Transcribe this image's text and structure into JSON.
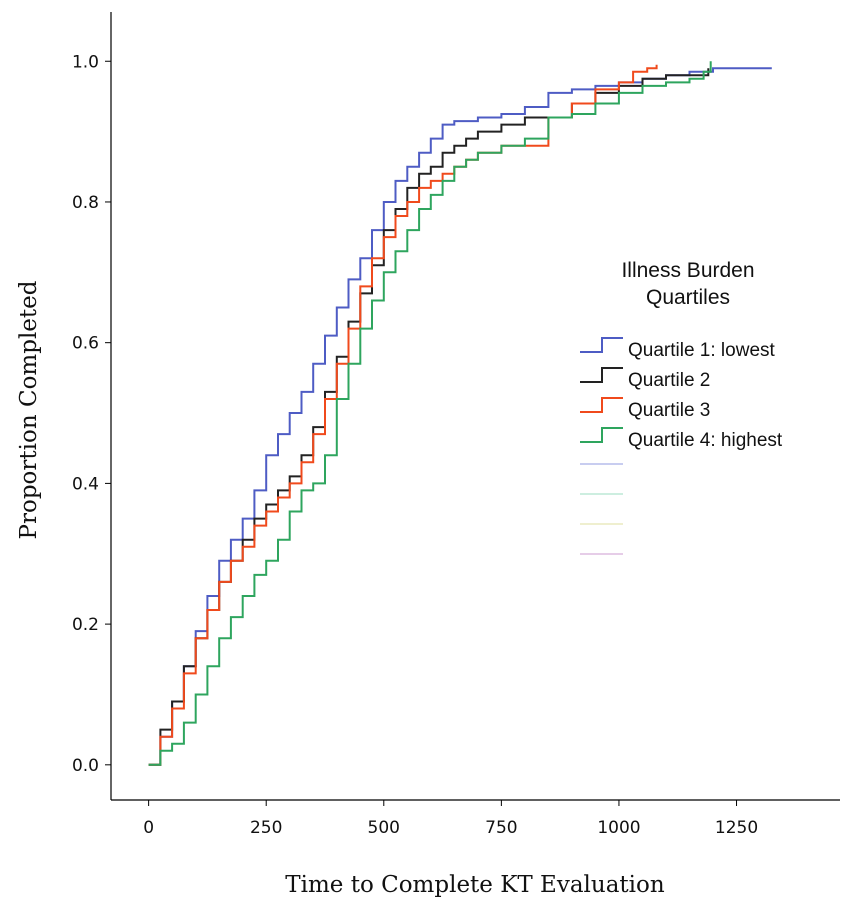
{
  "chart_data": {
    "type": "line",
    "step": true,
    "title": "",
    "xlabel": "Time to Complete KT Evaluation",
    "ylabel": "Proportion Completed",
    "xlim": [
      -80,
      1470
    ],
    "ylim": [
      -0.05,
      1.07
    ],
    "xticks": [
      0,
      250,
      500,
      750,
      1000,
      1250
    ],
    "xtick_labels": [
      "0",
      "250",
      "500",
      "750",
      "1000",
      "1250"
    ],
    "yticks": [
      0.0,
      0.2,
      0.4,
      0.6,
      0.8,
      1.0
    ],
    "ytick_labels": [
      "0.0",
      "0.2",
      "0.4",
      "0.6",
      "0.8",
      "1.0"
    ],
    "grid": false,
    "legend": {
      "title_lines": [
        "Illness Burden",
        "Quartiles"
      ],
      "placement": "right",
      "faint_swatch_colors": [
        "#c8cdf0",
        "#cdeee0",
        "#efefcf",
        "#e6cde8"
      ]
    },
    "series": [
      {
        "name": "Quartile 1: lowest",
        "color": "#4e5cc4",
        "x": [
          0,
          25,
          50,
          75,
          100,
          125,
          150,
          175,
          200,
          225,
          250,
          275,
          300,
          325,
          350,
          375,
          400,
          425,
          450,
          475,
          500,
          525,
          550,
          575,
          600,
          625,
          650,
          675,
          700,
          750,
          800,
          850,
          900,
          950,
          1000,
          1050,
          1100,
          1150,
          1200,
          1250,
          1325
        ],
        "y": [
          0.0,
          0.04,
          0.09,
          0.14,
          0.19,
          0.24,
          0.29,
          0.32,
          0.35,
          0.39,
          0.44,
          0.47,
          0.5,
          0.53,
          0.57,
          0.61,
          0.65,
          0.69,
          0.72,
          0.76,
          0.8,
          0.83,
          0.85,
          0.87,
          0.89,
          0.91,
          0.915,
          0.915,
          0.92,
          0.925,
          0.935,
          0.955,
          0.96,
          0.965,
          0.97,
          0.975,
          0.98,
          0.985,
          0.99,
          0.99,
          0.99
        ]
      },
      {
        "name": "Quartile 2",
        "color": "#222222",
        "x": [
          0,
          25,
          50,
          75,
          100,
          125,
          150,
          175,
          200,
          225,
          250,
          275,
          300,
          325,
          350,
          375,
          400,
          425,
          450,
          475,
          500,
          525,
          550,
          575,
          600,
          625,
          650,
          675,
          700,
          750,
          800,
          850,
          900,
          950,
          1000,
          1050,
          1100,
          1150,
          1190
        ],
        "y": [
          0.0,
          0.05,
          0.09,
          0.14,
          0.18,
          0.22,
          0.26,
          0.29,
          0.32,
          0.35,
          0.37,
          0.39,
          0.41,
          0.44,
          0.48,
          0.53,
          0.58,
          0.63,
          0.67,
          0.71,
          0.76,
          0.79,
          0.82,
          0.84,
          0.85,
          0.87,
          0.88,
          0.89,
          0.9,
          0.91,
          0.92,
          0.92,
          0.94,
          0.955,
          0.965,
          0.975,
          0.98,
          0.98,
          0.99
        ]
      },
      {
        "name": "Quartile 3",
        "color": "#f04a1c",
        "x": [
          0,
          25,
          50,
          75,
          100,
          125,
          150,
          175,
          200,
          225,
          250,
          275,
          300,
          325,
          350,
          375,
          400,
          425,
          450,
          475,
          500,
          525,
          550,
          575,
          600,
          625,
          650,
          675,
          700,
          750,
          800,
          850,
          900,
          950,
          1000,
          1030,
          1060,
          1080
        ],
        "y": [
          0.0,
          0.04,
          0.08,
          0.13,
          0.18,
          0.22,
          0.26,
          0.29,
          0.31,
          0.34,
          0.36,
          0.38,
          0.4,
          0.43,
          0.47,
          0.52,
          0.57,
          0.62,
          0.68,
          0.72,
          0.75,
          0.78,
          0.8,
          0.82,
          0.83,
          0.84,
          0.85,
          0.86,
          0.87,
          0.88,
          0.88,
          0.92,
          0.94,
          0.96,
          0.97,
          0.985,
          0.99,
          0.995
        ]
      },
      {
        "name": "Quartile 4: highest",
        "color": "#2ea55e",
        "x": [
          0,
          25,
          50,
          75,
          100,
          125,
          150,
          175,
          200,
          225,
          250,
          275,
          300,
          325,
          350,
          375,
          400,
          425,
          450,
          475,
          500,
          525,
          550,
          575,
          600,
          625,
          650,
          675,
          700,
          750,
          800,
          850,
          900,
          950,
          1000,
          1050,
          1100,
          1150,
          1180,
          1195
        ],
        "y": [
          0.0,
          0.02,
          0.03,
          0.06,
          0.1,
          0.14,
          0.18,
          0.21,
          0.24,
          0.27,
          0.29,
          0.32,
          0.36,
          0.39,
          0.4,
          0.44,
          0.52,
          0.57,
          0.62,
          0.66,
          0.7,
          0.73,
          0.76,
          0.79,
          0.81,
          0.83,
          0.85,
          0.86,
          0.87,
          0.88,
          0.89,
          0.92,
          0.925,
          0.94,
          0.955,
          0.965,
          0.97,
          0.975,
          0.985,
          1.0
        ]
      }
    ]
  }
}
